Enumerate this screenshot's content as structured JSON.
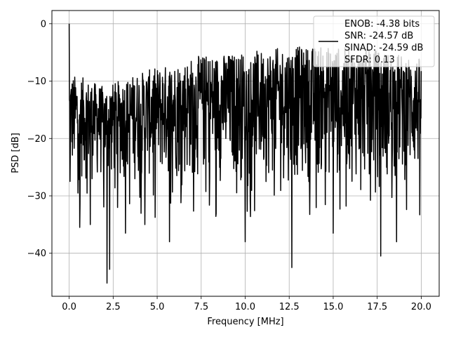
{
  "chart_data": {
    "type": "line",
    "title": "",
    "xlabel": "Frequency [MHz]",
    "ylabel": "PSD [dB]",
    "xlim": [
      -0.98,
      21.02
    ],
    "ylim": [
      -47.5,
      2.3
    ],
    "xticks": [
      0.0,
      2.5,
      5.0,
      7.5,
      10.0,
      12.5,
      15.0,
      17.5,
      20.0
    ],
    "xtick_labels": [
      "0.0",
      "2.5",
      "5.0",
      "7.5",
      "10.0",
      "12.5",
      "15.0",
      "17.5",
      "20.0"
    ],
    "yticks": [
      0,
      -10,
      -20,
      -30,
      -40
    ],
    "ytick_labels": [
      "0",
      "−10",
      "−20",
      "−30",
      "−40"
    ],
    "grid": true,
    "legend_position": "top-right",
    "legend": [
      "ENOB: -4.38 bits",
      "SNR: -24.57 dB",
      "SINAD: -24.59 dB",
      "SFDR: 0.13"
    ],
    "line_color": "#000000",
    "series": [
      {
        "description": "noise-like power spectral density, approx. 1200 points from 0 to 20 MHz",
        "x_range": [
          0.0,
          20.0
        ],
        "peak": {
          "x": 0.0,
          "y": 0.0
        },
        "low_envelope_points": [
          {
            "x": 0.05,
            "y": -27.5
          },
          {
            "x": 0.6,
            "y": -35.5
          },
          {
            "x": 1.2,
            "y": -35.0
          },
          {
            "x": 2.15,
            "y": -45.2
          },
          {
            "x": 2.3,
            "y": -42.8
          },
          {
            "x": 3.2,
            "y": -36.5
          },
          {
            "x": 4.3,
            "y": -35.0
          },
          {
            "x": 5.7,
            "y": -38.0
          },
          {
            "x": 10.0,
            "y": -38.0
          },
          {
            "x": 12.65,
            "y": -42.5
          },
          {
            "x": 15.0,
            "y": -36.5
          },
          {
            "x": 17.7,
            "y": -40.5
          },
          {
            "x": 18.6,
            "y": -38.0
          }
        ],
        "upper_envelope_points": [
          {
            "x": 0.5,
            "y": -9.0
          },
          {
            "x": 2.0,
            "y": -11.0
          },
          {
            "x": 4.0,
            "y": -8.5
          },
          {
            "x": 7.5,
            "y": -5.5
          },
          {
            "x": 10.0,
            "y": -5.0
          },
          {
            "x": 12.5,
            "y": -4.0
          },
          {
            "x": 15.0,
            "y": -4.0
          },
          {
            "x": 17.5,
            "y": -4.5
          },
          {
            "x": 20.0,
            "y": -6.0
          }
        ]
      }
    ]
  }
}
